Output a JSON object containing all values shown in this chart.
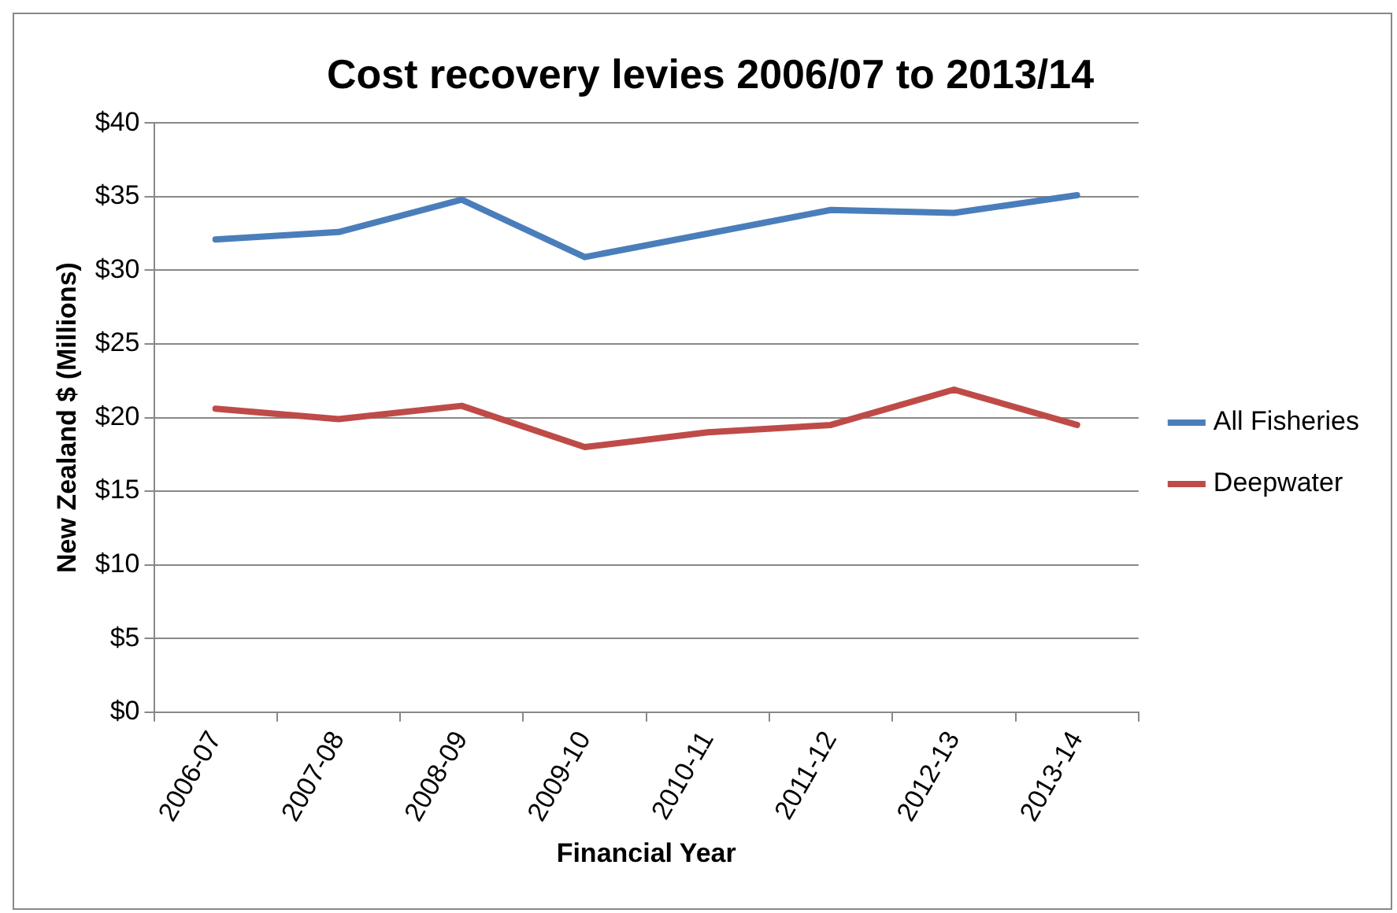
{
  "chart_data": {
    "type": "line",
    "title": "Cost recovery levies 2006/07 to 2013/14",
    "xlabel": "Financial Year",
    "ylabel": "New Zealand $ (Millions)",
    "categories": [
      "2006-07",
      "2007-08",
      "2008-09",
      "2009-10",
      "2010-11",
      "2011-12",
      "2012-13",
      "2013-14"
    ],
    "series": [
      {
        "name": "All Fisheries",
        "color": "#4a7ebb",
        "values": [
          32.1,
          32.6,
          34.8,
          30.9,
          32.5,
          34.1,
          33.9,
          35.1
        ]
      },
      {
        "name": "Deepwater",
        "color": "#be4b48",
        "values": [
          20.6,
          19.9,
          20.8,
          18.0,
          19.0,
          19.5,
          21.9,
          19.5
        ]
      }
    ],
    "ylim": [
      0,
      40
    ],
    "yticks": [
      {
        "value": 0,
        "label": "$0"
      },
      {
        "value": 5,
        "label": "$5"
      },
      {
        "value": 10,
        "label": "$10"
      },
      {
        "value": 15,
        "label": "$15"
      },
      {
        "value": 20,
        "label": "$20"
      },
      {
        "value": 25,
        "label": "$25"
      },
      {
        "value": 30,
        "label": "$30"
      },
      {
        "value": 35,
        "label": "$35"
      },
      {
        "value": 40,
        "label": "$40"
      }
    ],
    "grid": "y",
    "legend": "right",
    "marker": "none",
    "line_style": "solid"
  }
}
